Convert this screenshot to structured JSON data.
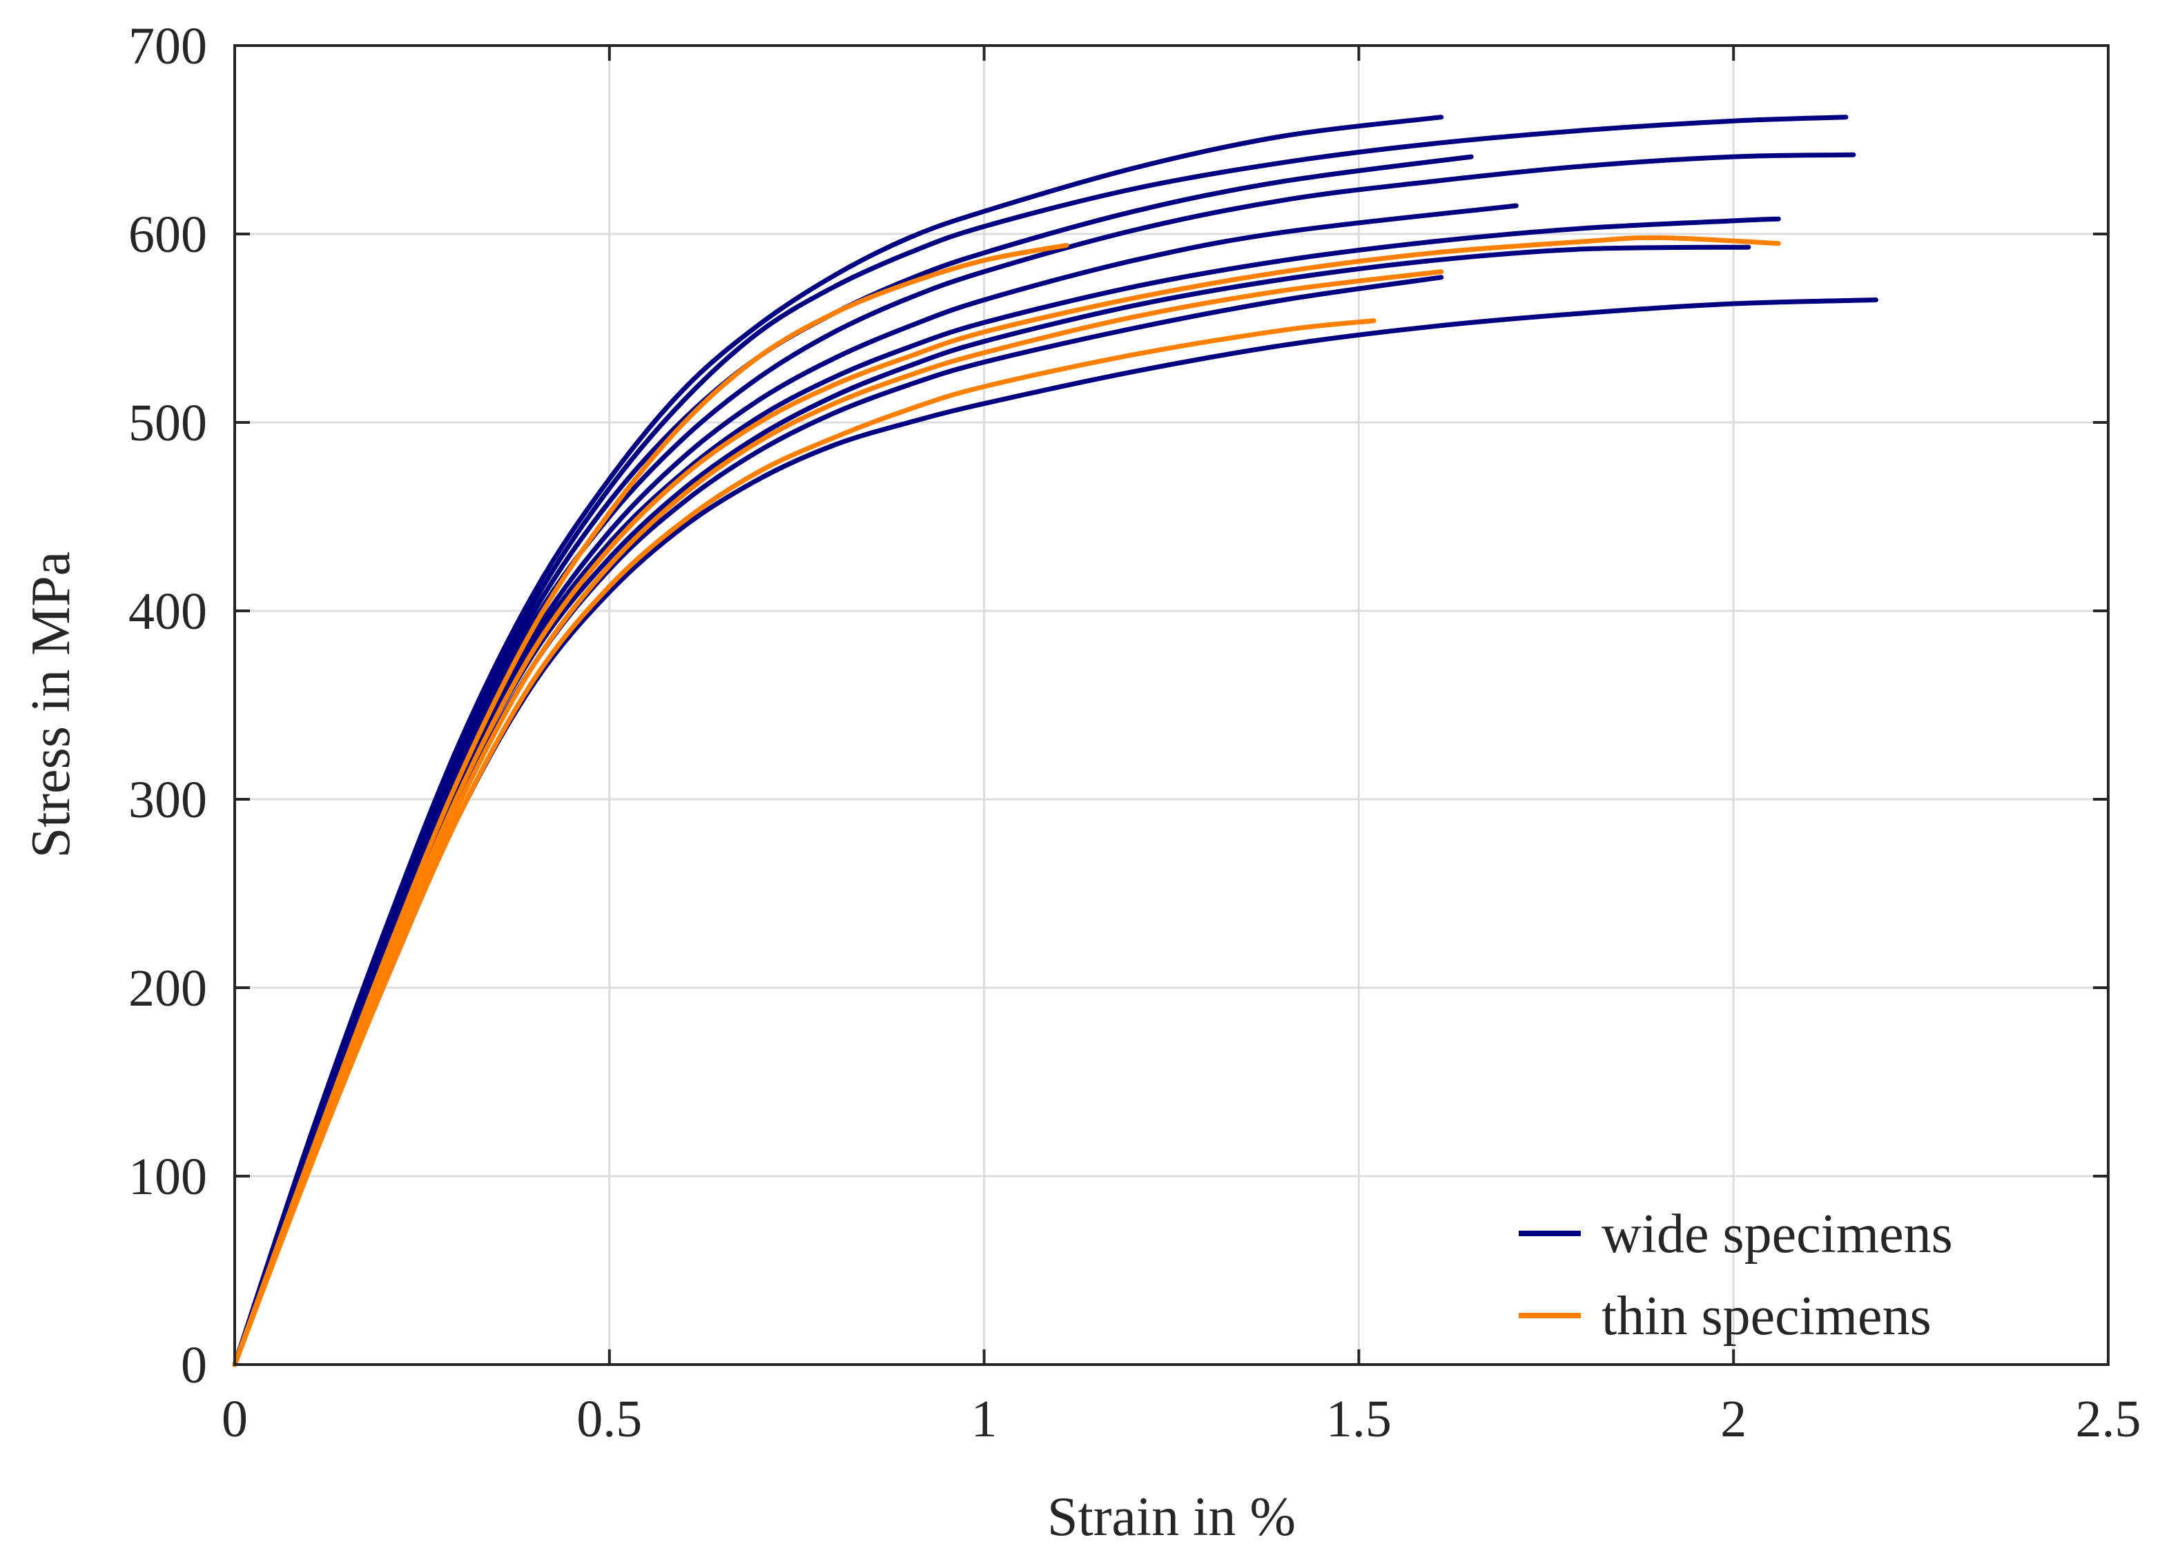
{
  "chart_data": {
    "type": "line",
    "title": "",
    "xlabel": "Strain in %",
    "ylabel": "Stress in MPa",
    "xlim": [
      0,
      2.5
    ],
    "ylim": [
      0,
      700
    ],
    "xticks": [
      0,
      0.5,
      1,
      1.5,
      2,
      2.5
    ],
    "xtick_labels": [
      "0",
      "0.5",
      "1",
      "1.5",
      "2",
      "2.5"
    ],
    "yticks": [
      0,
      100,
      200,
      300,
      400,
      500,
      600,
      700
    ],
    "ytick_labels": [
      "0",
      "100",
      "200",
      "300",
      "400",
      "500",
      "600",
      "700"
    ],
    "grid": true,
    "legend_position": "bottom-right",
    "legend": [
      {
        "label": "wide specimens",
        "color": "#000080"
      },
      {
        "label": "thin specimens",
        "color": "#ff8000"
      }
    ],
    "series": [
      {
        "name": "wide specimen 1",
        "group": "wide",
        "color": "#000080",
        "x": [
          0,
          0.1,
          0.2,
          0.3,
          0.4,
          0.5,
          0.6,
          0.7,
          0.8,
          0.9,
          1.0,
          1.2,
          1.4,
          1.61
        ],
        "y": [
          0,
          120,
          230,
          330,
          410,
          470,
          518,
          552,
          578,
          598,
          612,
          635,
          652,
          662
        ]
      },
      {
        "name": "wide specimen 2",
        "group": "wide",
        "color": "#000080",
        "x": [
          0,
          0.1,
          0.2,
          0.3,
          0.4,
          0.5,
          0.6,
          0.7,
          0.8,
          0.9,
          1.0,
          1.2,
          1.4,
          1.6,
          1.8,
          2.0,
          2.15
        ],
        "y": [
          0,
          118,
          225,
          325,
          405,
          465,
          512,
          548,
          572,
          590,
          604,
          624,
          638,
          648,
          655,
          660,
          662
        ]
      },
      {
        "name": "wide specimen 3",
        "group": "wide",
        "color": "#000080",
        "x": [
          0,
          0.1,
          0.2,
          0.3,
          0.4,
          0.5,
          0.6,
          0.7,
          0.8,
          0.9,
          1.0,
          1.2,
          1.4,
          1.65
        ],
        "y": [
          0,
          118,
          224,
          322,
          400,
          458,
          502,
          535,
          558,
          576,
          590,
          612,
          628,
          641
        ]
      },
      {
        "name": "wide specimen 4",
        "group": "wide",
        "color": "#000080",
        "x": [
          0,
          0.1,
          0.2,
          0.3,
          0.4,
          0.5,
          0.6,
          0.7,
          0.8,
          0.9,
          1.0,
          1.2,
          1.4,
          1.6,
          1.8,
          2.0,
          2.16
        ],
        "y": [
          0,
          115,
          220,
          318,
          395,
          450,
          492,
          524,
          548,
          566,
          580,
          602,
          618,
          628,
          636,
          641,
          642
        ]
      },
      {
        "name": "wide specimen 5",
        "group": "wide",
        "color": "#000080",
        "x": [
          0,
          0.1,
          0.2,
          0.3,
          0.4,
          0.5,
          0.6,
          0.7,
          0.8,
          0.9,
          1.0,
          1.2,
          1.4,
          1.71
        ],
        "y": [
          0,
          115,
          218,
          313,
          388,
          442,
          482,
          512,
          534,
          551,
          565,
          586,
          601,
          615
        ]
      },
      {
        "name": "wide specimen 6",
        "group": "wide",
        "color": "#000080",
        "x": [
          0,
          0.1,
          0.2,
          0.3,
          0.4,
          0.5,
          0.6,
          0.7,
          0.8,
          0.9,
          1.0,
          1.2,
          1.4,
          1.6,
          1.8,
          2.0,
          2.06
        ],
        "y": [
          0,
          112,
          215,
          310,
          384,
          436,
          474,
          503,
          524,
          540,
          553,
          572,
          586,
          596,
          603,
          607,
          608
        ]
      },
      {
        "name": "wide specimen 7",
        "group": "wide",
        "color": "#000080",
        "x": [
          0,
          0.1,
          0.2,
          0.3,
          0.4,
          0.5,
          0.6,
          0.7,
          0.8,
          0.9,
          1.0,
          1.2,
          1.4,
          1.6,
          1.8,
          2.02
        ],
        "y": [
          0,
          110,
          212,
          305,
          378,
          428,
          465,
          493,
          514,
          530,
          543,
          562,
          576,
          586,
          592,
          593
        ]
      },
      {
        "name": "wide specimen 8",
        "group": "wide",
        "color": "#000080",
        "x": [
          0,
          0.1,
          0.2,
          0.3,
          0.4,
          0.5,
          0.6,
          0.7,
          0.8,
          0.9,
          1.0,
          1.2,
          1.4,
          1.61
        ],
        "y": [
          0,
          108,
          208,
          300,
          372,
          422,
          458,
          485,
          505,
          520,
          532,
          550,
          565,
          577
        ]
      },
      {
        "name": "wide specimen 9",
        "group": "wide",
        "color": "#000080",
        "x": [
          0,
          0.1,
          0.2,
          0.3,
          0.4,
          0.5,
          0.6,
          0.7,
          0.8,
          0.9,
          1.0,
          1.2,
          1.4,
          1.6,
          1.8,
          2.0,
          2.19
        ],
        "y": [
          0,
          105,
          202,
          292,
          362,
          410,
          445,
          470,
          488,
          500,
          510,
          527,
          541,
          551,
          558,
          563,
          565
        ]
      },
      {
        "name": "thin specimen 1",
        "group": "thin",
        "color": "#ff8000",
        "x": [
          0,
          0.1,
          0.2,
          0.3,
          0.4,
          0.5,
          0.6,
          0.7,
          0.8,
          0.9,
          1.0,
          1.11
        ],
        "y": [
          0,
          110,
          215,
          312,
          392,
          452,
          500,
          535,
          558,
          574,
          586,
          594
        ]
      },
      {
        "name": "thin specimen 2",
        "group": "thin",
        "color": "#ff8000",
        "x": [
          0,
          0.1,
          0.2,
          0.3,
          0.4,
          0.5,
          0.6,
          0.7,
          0.8,
          0.9,
          1.0,
          1.2,
          1.4,
          1.6,
          1.8,
          1.9,
          2.06
        ],
        "y": [
          0,
          108,
          210,
          304,
          380,
          433,
          472,
          500,
          520,
          535,
          548,
          566,
          580,
          590,
          596,
          598,
          595
        ]
      },
      {
        "name": "thin specimen 3",
        "group": "thin",
        "color": "#ff8000",
        "x": [
          0,
          0.1,
          0.2,
          0.3,
          0.4,
          0.5,
          0.6,
          0.7,
          0.8,
          0.9,
          1.0,
          1.2,
          1.4,
          1.61
        ],
        "y": [
          0,
          106,
          206,
          298,
          372,
          424,
          462,
          490,
          510,
          525,
          537,
          556,
          570,
          580
        ]
      },
      {
        "name": "thin specimen 4",
        "group": "thin",
        "color": "#ff8000",
        "x": [
          0,
          0.1,
          0.2,
          0.3,
          0.4,
          0.5,
          0.6,
          0.7,
          0.8,
          0.9,
          1.0,
          1.2,
          1.4,
          1.52
        ],
        "y": [
          0,
          104,
          202,
          292,
          364,
          413,
          448,
          474,
          492,
          507,
          519,
          536,
          549,
          554
        ]
      }
    ]
  }
}
